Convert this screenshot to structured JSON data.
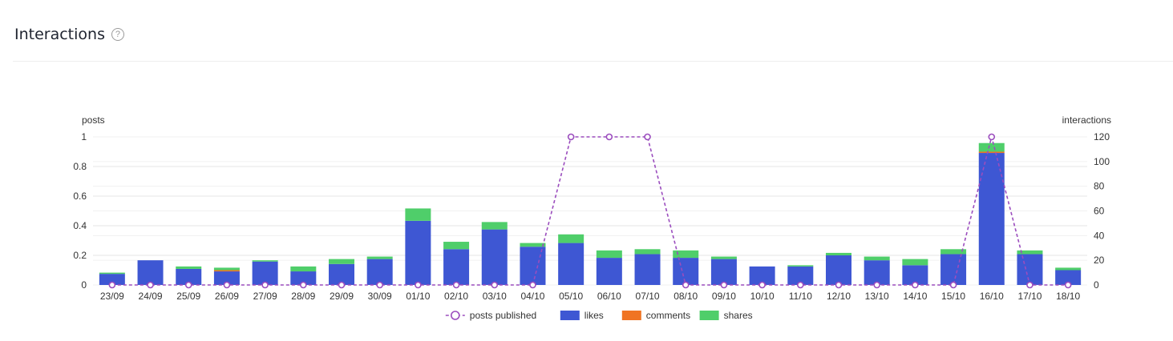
{
  "header": {
    "title": "Interactions",
    "help_icon": "?"
  },
  "chart_data": {
    "type": "bar",
    "stacked": true,
    "categories": [
      "23/09",
      "24/09",
      "25/09",
      "26/09",
      "27/09",
      "28/09",
      "29/09",
      "30/09",
      "01/10",
      "02/10",
      "03/10",
      "04/10",
      "05/10",
      "06/10",
      "07/10",
      "08/10",
      "09/10",
      "10/10",
      "11/10",
      "12/10",
      "13/10",
      "14/10",
      "15/10",
      "16/10",
      "17/10",
      "18/10"
    ],
    "left_axis": {
      "label": "posts",
      "ylim": [
        0,
        1
      ],
      "ticks": [
        "0",
        "0.2",
        "0.4",
        "0.6",
        "0.8",
        "1"
      ]
    },
    "right_axis": {
      "label": "interactions",
      "ylim": [
        0,
        120
      ],
      "ticks": [
        "0",
        "20",
        "40",
        "60",
        "80",
        "100",
        "120"
      ]
    },
    "series": [
      {
        "name": "likes",
        "type": "bar",
        "axis": "right",
        "color": "#3e57d3",
        "values": [
          9,
          20,
          13,
          11,
          19,
          11,
          17,
          21,
          52,
          29,
          45,
          31,
          34,
          22,
          25,
          22,
          21,
          15,
          15,
          24,
          20,
          16,
          25,
          107,
          25,
          12
        ]
      },
      {
        "name": "comments",
        "type": "bar",
        "axis": "right",
        "color": "#f07423",
        "values": [
          0,
          0,
          0,
          1,
          0,
          0,
          0,
          0,
          0,
          0,
          0,
          0,
          0,
          0,
          0,
          0,
          0,
          0,
          0,
          0,
          0,
          0,
          0,
          1,
          0,
          0
        ]
      },
      {
        "name": "shares",
        "type": "bar",
        "axis": "right",
        "color": "#4fce6a",
        "values": [
          1,
          0,
          2,
          2,
          1,
          4,
          4,
          2,
          10,
          6,
          6,
          3,
          7,
          6,
          4,
          6,
          2,
          0,
          1,
          2,
          3,
          5,
          4,
          7,
          3,
          2
        ]
      },
      {
        "name": "posts published",
        "type": "line",
        "axis": "left",
        "color": "#9b4dbe",
        "values": [
          0,
          0,
          0,
          0,
          0,
          0,
          0,
          0,
          0,
          0,
          0,
          0,
          1,
          1,
          1,
          0,
          0,
          0,
          0,
          0,
          0,
          0,
          0,
          1,
          0,
          0
        ]
      }
    ],
    "legend": {
      "position": "bottom",
      "entries": [
        "posts published",
        "likes",
        "comments",
        "shares"
      ]
    },
    "grid": true
  }
}
